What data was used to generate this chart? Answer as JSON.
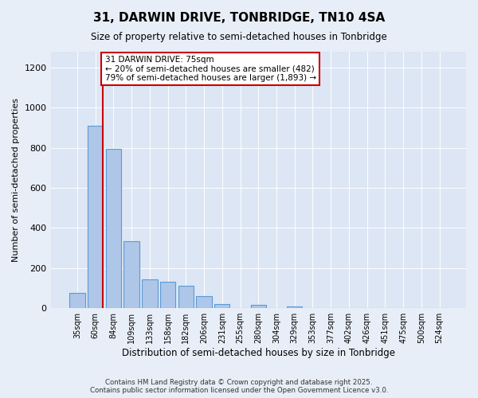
{
  "title_line1": "31, DARWIN DRIVE, TONBRIDGE, TN10 4SA",
  "title_line2": "Size of property relative to semi-detached houses in Tonbridge",
  "xlabel": "Distribution of semi-detached houses by size in Tonbridge",
  "ylabel": "Number of semi-detached properties",
  "categories": [
    "35sqm",
    "60sqm",
    "84sqm",
    "109sqm",
    "133sqm",
    "158sqm",
    "182sqm",
    "206sqm",
    "231sqm",
    "255sqm",
    "280sqm",
    "304sqm",
    "329sqm",
    "353sqm",
    "377sqm",
    "402sqm",
    "426sqm",
    "451sqm",
    "475sqm",
    "500sqm",
    "524sqm"
  ],
  "values": [
    75,
    910,
    795,
    335,
    145,
    130,
    110,
    60,
    20,
    0,
    15,
    0,
    10,
    0,
    0,
    0,
    0,
    0,
    0,
    0,
    0
  ],
  "bar_color": "#aec6e8",
  "bar_edge_color": "#5b9bd5",
  "vline_color": "#cc0000",
  "vline_x_index": 1,
  "annotation_text": "31 DARWIN DRIVE: 75sqm\n← 20% of semi-detached houses are smaller (482)\n79% of semi-detached houses are larger (1,893) →",
  "annotation_box_color": "#ffffff",
  "annotation_box_edge_color": "#cc0000",
  "ylim": [
    0,
    1280
  ],
  "yticks": [
    0,
    200,
    400,
    600,
    800,
    1000,
    1200
  ],
  "footer_line1": "Contains HM Land Registry data © Crown copyright and database right 2025.",
  "footer_line2": "Contains public sector information licensed under the Open Government Licence v3.0.",
  "bg_color": "#e8eef7",
  "plot_bg_color": "#dce6f4"
}
